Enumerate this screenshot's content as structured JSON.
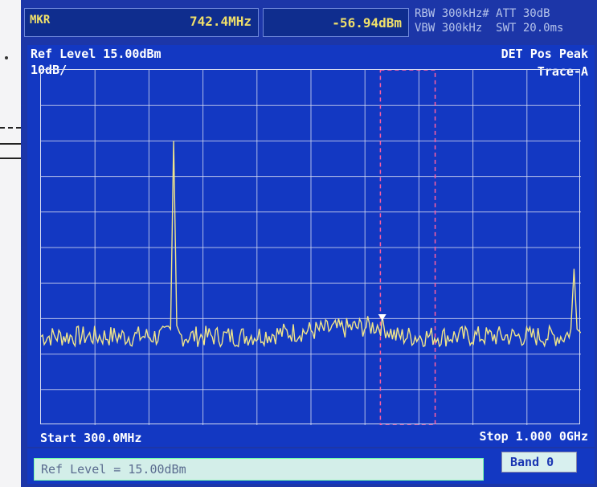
{
  "header": {
    "marker_label": "MKR",
    "marker_freq": "742.4MHz",
    "marker_amp": "-56.94dBm",
    "params_row1": "RBW 300kHz# ATT 30dB",
    "params_row2": "VBW 300kHz  SWT 20.0ms"
  },
  "screen": {
    "ref_level": "Ref Level  15.00dBm",
    "scale": "10dB/",
    "detector": "DET  Pos Peak",
    "trace": "Trace-A",
    "start": "Start 300.0MHz",
    "stop": "Stop 1.000 0GHz"
  },
  "status": {
    "message": "Ref Level = 15.00dBm",
    "band": "Band 0"
  },
  "colors": {
    "background": "#1338c2",
    "grid": "#d6dcf2",
    "trace": "#f0e58a",
    "marker": "#ffffff",
    "window_box": "#ff5fa0"
  },
  "chart_data": {
    "type": "line",
    "x_unit": "MHz",
    "y_unit": "dBm",
    "xlim": [
      300,
      1000
    ],
    "ylim": [
      -85,
      15
    ],
    "grid": true,
    "series": [
      {
        "points": [
          [
            300,
            -60
          ],
          [
            460,
            -60
          ],
          [
            468,
            -58
          ],
          [
            472,
            -5
          ],
          [
            476,
            -57
          ],
          [
            480,
            -60
          ],
          [
            560,
            -60
          ],
          [
            742.4,
            -56.94
          ],
          [
            760,
            -60
          ],
          [
            980,
            -60
          ],
          [
            987,
            -58
          ],
          [
            991,
            -41
          ],
          [
            995,
            -58
          ],
          [
            1000,
            -59
          ]
        ]
      }
    ],
    "marker": {
      "x": 742.4,
      "y": -56.94
    },
    "window": {
      "x_start": 740,
      "x_end": 811
    }
  }
}
